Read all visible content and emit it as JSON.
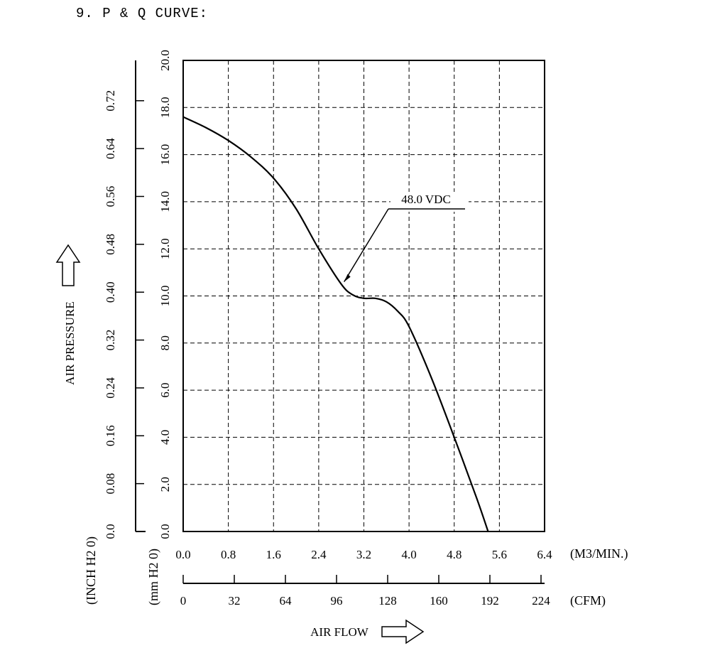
{
  "figure": {
    "title": "9. P & Q CURVE:"
  },
  "chart_data": {
    "type": "line",
    "title": "",
    "xlabel": "AIR FLOW",
    "ylabel": "AIR PRESSURE",
    "xlim": [
      0,
      6.4
    ],
    "ylim": [
      0,
      20
    ],
    "x_unit": "(M3/MIN.)",
    "x_ticks": [
      "0.0",
      "0.8",
      "1.6",
      "2.4",
      "3.2",
      "4.0",
      "4.8",
      "5.6",
      "6.4"
    ],
    "x2_unit": "(CFM)",
    "x2_ticks": [
      "0",
      "32",
      "64",
      "96",
      "128",
      "160",
      "192",
      "224"
    ],
    "y_unit": "(mm H2 0)",
    "y_ticks": [
      "0.0",
      "2.0",
      "4.0",
      "6.0",
      "8.0",
      "10.0",
      "12.0",
      "14.0",
      "16.0",
      "18.0",
      "20.0"
    ],
    "y2_unit": "(INCH H2 0)",
    "y2_ticks": [
      "0.0",
      "0.08",
      "0.16",
      "0.24",
      "0.32",
      "0.40",
      "0.48",
      "0.56",
      "0.64",
      "0.72"
    ],
    "grid": true,
    "series": [
      {
        "name": "48.0 VDC",
        "x": [
          0,
          0.4,
          0.8,
          1.2,
          1.6,
          2.0,
          2.4,
          2.8,
          3.0,
          3.2,
          3.4,
          3.6,
          3.8,
          4.0,
          4.4,
          4.8,
          5.2,
          5.4
        ],
        "y": [
          17.6,
          17.15,
          16.6,
          15.9,
          15.0,
          13.7,
          12.0,
          10.5,
          10.05,
          9.9,
          9.9,
          9.75,
          9.35,
          8.7,
          6.5,
          4.0,
          1.4,
          0.0
        ]
      }
    ],
    "annotations": [
      {
        "text": "48.0 VDC",
        "points_to": [
          2.85,
          10.6
        ]
      }
    ]
  }
}
